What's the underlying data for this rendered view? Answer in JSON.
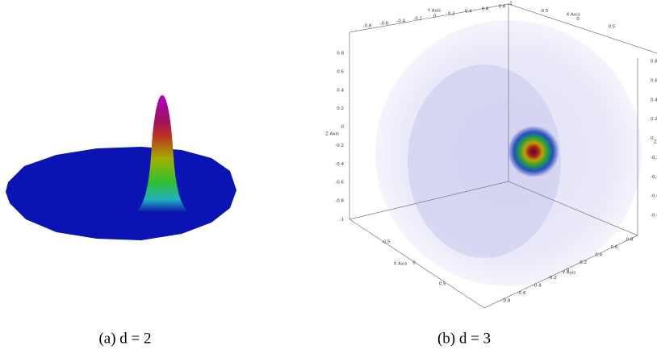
{
  "figure": {
    "panels": [
      {
        "caption": "(a) d = 2"
      },
      {
        "caption": "(b) d = 3",
        "axes": {
          "top_y": {
            "title": "Y Axis",
            "ticks": [
              "-0.8",
              "-0.6",
              "-0.4",
              "-0.2",
              "0",
              "0.2",
              "0.4",
              "0.6",
              "0.8"
            ]
          },
          "top_x": {
            "title": "X Axis",
            "ticks": [
              "-1",
              "-0.5",
              "0",
              "0.5"
            ]
          },
          "left_z": {
            "title": "Z Axis",
            "ticks": [
              "0.8",
              "0.6",
              "0.4",
              "0.2",
              "0",
              "-0.2",
              "-0.4",
              "-0.6",
              "-0.8",
              "-1"
            ]
          },
          "right_z": {
            "title": "Z A",
            "ticks": [
              "0.8",
              "0.6",
              "0.4",
              "0.2",
              "0",
              "-0.2",
              "-0.4",
              "-0.6",
              "-0.8"
            ]
          },
          "bottom_x": {
            "title": "X Axis",
            "ticks": [
              "-0.5",
              "0",
              "0.5"
            ]
          },
          "bottom_y": {
            "title": "Y Axis",
            "ticks": [
              "0.8",
              "0.6",
              "0.4",
              "0.2",
              "0",
              "-0.2",
              "-0.4",
              "-0.6",
              "-0.8"
            ]
          }
        }
      }
    ]
  }
}
